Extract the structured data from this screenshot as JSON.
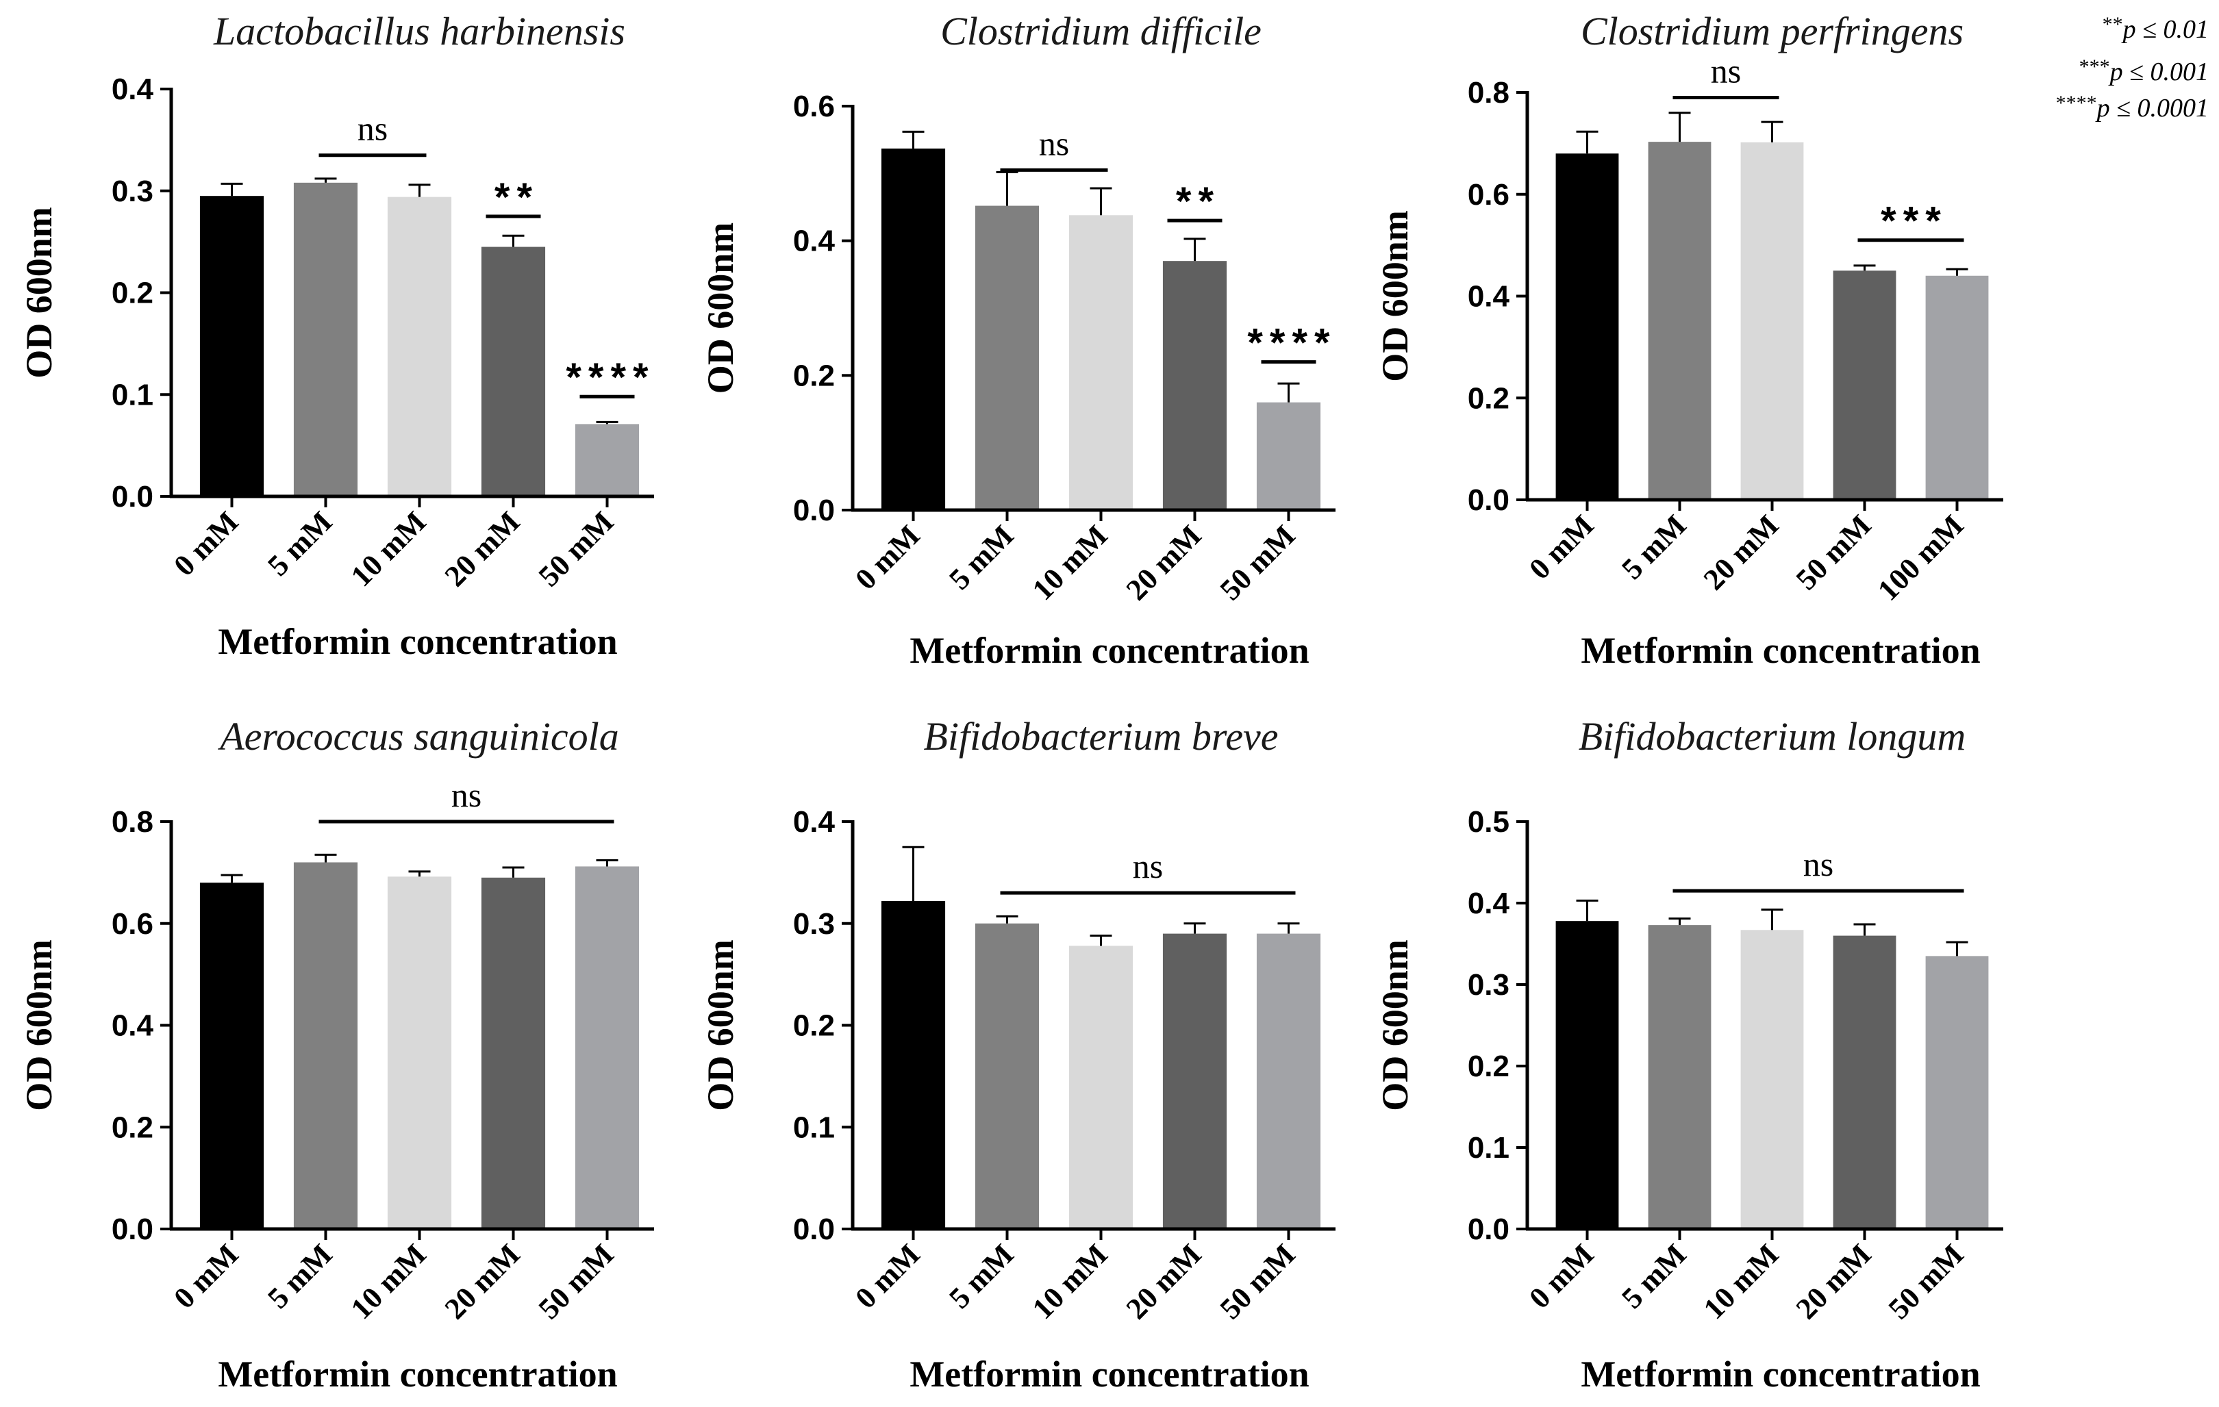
{
  "significance_legend": [
    {
      "stars": "**",
      "text": "p ≤ 0.01"
    },
    {
      "stars": "***",
      "text": "p ≤ 0.001"
    },
    {
      "stars": "****",
      "text": "p ≤ 0.0001"
    }
  ],
  "colors": {
    "bar_shades": [
      "#000000",
      "#808080",
      "#d9d9d9",
      "#606060",
      "#a2a3a7"
    ],
    "axis": "#000000"
  },
  "chart_data": [
    {
      "type": "bar",
      "title": "Lactobacillus harbinensis",
      "xlabel": "Metformin concentration",
      "ylabel": "OD 600nm",
      "categories": [
        "0 mM",
        "5 mM",
        "10 mM",
        "20 mM",
        "50 mM"
      ],
      "values": [
        0.295,
        0.308,
        0.294,
        0.245,
        0.071
      ],
      "errors": [
        0.012,
        0.004,
        0.012,
        0.011,
        0.002
      ],
      "ylim": [
        0,
        0.4
      ],
      "yticks": [
        "0.0",
        "0.1",
        "0.2",
        "0.3",
        "0.4"
      ],
      "annotations": [
        {
          "text": "ns",
          "from": 1,
          "to": 2,
          "y": 0.335
        },
        {
          "text": "**",
          "from": 3,
          "to": 3,
          "y": 0.275
        },
        {
          "text": "****",
          "from": 4,
          "to": 4,
          "y": 0.098
        }
      ]
    },
    {
      "type": "bar",
      "title": "Clostridium difficile",
      "xlabel": "Metformin concentration",
      "ylabel": "OD 600nm",
      "categories": [
        "0 mM",
        "5 mM",
        "10 mM",
        "20 mM",
        "50 mM"
      ],
      "values": [
        0.537,
        0.452,
        0.438,
        0.37,
        0.16
      ],
      "errors": [
        0.025,
        0.05,
        0.04,
        0.033,
        0.028
      ],
      "ylim": [
        0,
        0.6
      ],
      "yticks": [
        "0.0",
        "0.2",
        "0.4",
        "0.6"
      ],
      "annotations": [
        {
          "text": "ns",
          "from": 1,
          "to": 2,
          "y": 0.505
        },
        {
          "text": "**",
          "from": 3,
          "to": 3,
          "y": 0.43
        },
        {
          "text": "****",
          "from": 4,
          "to": 4,
          "y": 0.22
        }
      ]
    },
    {
      "type": "bar",
      "title": "Clostridium perfringens",
      "xlabel": "Metformin concentration",
      "ylabel": "OD 600nm",
      "categories": [
        "0 mM",
        "5 mM",
        "20 mM",
        "50 mM",
        "100 mM"
      ],
      "values": [
        0.68,
        0.703,
        0.702,
        0.45,
        0.44
      ],
      "errors": [
        0.043,
        0.057,
        0.04,
        0.01,
        0.013
      ],
      "ylim": [
        0,
        0.8
      ],
      "yticks": [
        "0.0",
        "0.2",
        "0.4",
        "0.6",
        "0.8"
      ],
      "annotations": [
        {
          "text": "ns",
          "from": 1,
          "to": 2,
          "y": 0.79
        },
        {
          "text": "***",
          "from": 3,
          "to": 4,
          "y": 0.51
        }
      ]
    },
    {
      "type": "bar",
      "title": "Aerococcus sanguinicola",
      "xlabel": "Metformin concentration",
      "ylabel": "OD 600nm",
      "categories": [
        "0 mM",
        "5 mM",
        "10 mM",
        "20 mM",
        "50 mM"
      ],
      "values": [
        0.68,
        0.72,
        0.692,
        0.69,
        0.712
      ],
      "errors": [
        0.015,
        0.015,
        0.01,
        0.02,
        0.012
      ],
      "ylim": [
        0,
        0.8
      ],
      "yticks": [
        "0.0",
        "0.2",
        "0.4",
        "0.6",
        "0.8"
      ],
      "annotations": [
        {
          "text": "ns",
          "from": 1,
          "to": 4,
          "y": 0.8
        }
      ]
    },
    {
      "type": "bar",
      "title": "Bifidobacterium breve",
      "xlabel": "Metformin concentration",
      "ylabel": "OD 600nm",
      "categories": [
        "0 mM",
        "5 mM",
        "10 mM",
        "20 mM",
        "50 mM"
      ],
      "values": [
        0.322,
        0.3,
        0.278,
        0.29,
        0.29
      ],
      "errors": [
        0.053,
        0.007,
        0.01,
        0.01,
        0.01
      ],
      "ylim": [
        0,
        0.4
      ],
      "yticks": [
        "0.0",
        "0.1",
        "0.2",
        "0.3",
        "0.4"
      ],
      "annotations": [
        {
          "text": "ns",
          "from": 1,
          "to": 4,
          "y": 0.33
        }
      ]
    },
    {
      "type": "bar",
      "title": "Bifidobacterium longum",
      "xlabel": "Metformin concentration",
      "ylabel": "OD 600nm",
      "categories": [
        "0 mM",
        "5 mM",
        "10 mM",
        "20 mM",
        "50 mM"
      ],
      "values": [
        0.378,
        0.373,
        0.367,
        0.36,
        0.335
      ],
      "errors": [
        0.025,
        0.008,
        0.025,
        0.014,
        0.017
      ],
      "ylim": [
        0,
        0.5
      ],
      "yticks": [
        "0.0",
        "0.1",
        "0.2",
        "0.3",
        "0.4",
        "0.5"
      ],
      "annotations": [
        {
          "text": "ns",
          "from": 1,
          "to": 4,
          "y": 0.415
        }
      ]
    }
  ]
}
